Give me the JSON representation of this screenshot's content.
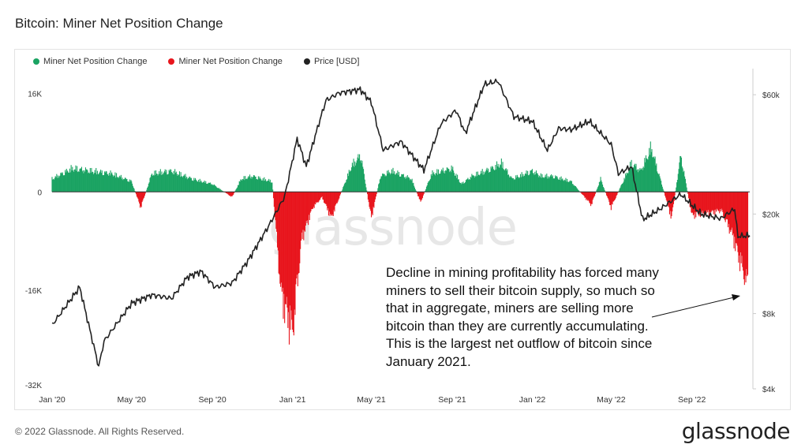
{
  "title": "Bitcoin: Miner Net Position Change",
  "legend": [
    {
      "label": "Miner Net Position Change",
      "color": "#1aa362"
    },
    {
      "label": "Miner Net Position Change",
      "color": "#e8151c"
    },
    {
      "label": "Price [USD]",
      "color": "#222222"
    }
  ],
  "annotation": "Decline in mining profitability has forced many miners to sell their bitcoin supply, so much so that in aggregate, miners are selling more bitcoin than they are currently accumulating. This is the largest net outflow of bitcoin since January 2021.",
  "watermark": "glassnode",
  "footer": {
    "copyright": "© 2022 Glassnode. All Rights Reserved.",
    "brand": "glassnode"
  },
  "chart_data": {
    "type": "bar",
    "left_axis": {
      "ticks": [
        16000,
        0,
        -16000,
        -32000
      ],
      "tick_labels": [
        "16K",
        "0",
        "-16K",
        "-32K"
      ],
      "range": [
        -32000,
        19000
      ]
    },
    "right_axis": {
      "scale": "log",
      "ticks": [
        60000,
        20000,
        8000,
        4000
      ],
      "tick_labels": [
        "$60k",
        "$20k",
        "$8k",
        "$4k"
      ],
      "range": [
        4000,
        72000
      ]
    },
    "x_axis": {
      "range": [
        "2020-01-01",
        "2022-11-28"
      ],
      "tick_labels": [
        "Jan '20",
        "May '20",
        "Sep '20",
        "Jan '21",
        "May '21",
        "Sep '21",
        "Jan '22",
        "May '22",
        "Sep '22"
      ]
    },
    "series": [
      {
        "name": "Miner Net Position Change",
        "type": "bar",
        "color_positive": "#1aa362",
        "color_negative": "#e8151c",
        "x": [
          "2020-01",
          "2020-02",
          "2020-03",
          "2020-04",
          "2020-05",
          "2020-05-15",
          "2020-06",
          "2020-07",
          "2020-08",
          "2020-09",
          "2020-10",
          "2020-10-15",
          "2020-11",
          "2020-11-15",
          "2020-12",
          "2020-12-15",
          "2021-01",
          "2021-01-15",
          "2021-02",
          "2021-02-15",
          "2021-03",
          "2021-04",
          "2021-04-15",
          "2021-05",
          "2021-05-15",
          "2021-06",
          "2021-07",
          "2021-07-15",
          "2021-08",
          "2021-09",
          "2021-09-15",
          "2021-10",
          "2021-11",
          "2021-11-15",
          "2021-12",
          "2022-01",
          "2022-01-15",
          "2022-02",
          "2022-03",
          "2022-04",
          "2022-04-15",
          "2022-05",
          "2022-06",
          "2022-06-15",
          "2022-07",
          "2022-08",
          "2022-08-15",
          "2022-09",
          "2022-10",
          "2022-10-15",
          "2022-11",
          "2022-11-15",
          "2022-11-25"
        ],
        "values": [
          2500,
          4500,
          4000,
          3500,
          2000,
          -3000,
          3500,
          4000,
          2500,
          1500,
          -1000,
          2500,
          3000,
          2500,
          2000,
          -20000,
          -27000,
          -9000,
          -3000,
          -1000,
          -5000,
          5000,
          7000,
          -5000,
          3000,
          4000,
          2500,
          -2000,
          3500,
          4500,
          1500,
          3000,
          4500,
          5500,
          2500,
          4000,
          3000,
          3000,
          2000,
          -2500,
          2500,
          -3000,
          5500,
          4000,
          8500,
          -5000,
          7000,
          -4500,
          -4000,
          -3500,
          -8000,
          -14000,
          -18000
        ]
      },
      {
        "name": "Price [USD]",
        "type": "line",
        "color": "#222222",
        "x": [
          "2020-01-01",
          "2020-02-12",
          "2020-03-12",
          "2020-03-20",
          "2020-05-01",
          "2020-06-01",
          "2020-07-01",
          "2020-07-25",
          "2020-08-15",
          "2020-09-05",
          "2020-10-01",
          "2020-10-25",
          "2020-11-25",
          "2020-12-20",
          "2021-01-08",
          "2021-01-22",
          "2021-02-10",
          "2021-02-21",
          "2021-03-13",
          "2021-04-14",
          "2021-05-01",
          "2021-05-19",
          "2021-06-15",
          "2021-07-20",
          "2021-08-15",
          "2021-09-07",
          "2021-09-21",
          "2021-10-20",
          "2021-11-10",
          "2021-12-04",
          "2022-01-01",
          "2022-01-24",
          "2022-02-10",
          "2022-03-01",
          "2022-03-29",
          "2022-05-01",
          "2022-05-12",
          "2022-06-01",
          "2022-06-18",
          "2022-07-15",
          "2022-08-15",
          "2022-09-15",
          "2022-10-15",
          "2022-11-05",
          "2022-11-10",
          "2022-11-28"
        ],
        "values": [
          7200,
          10200,
          4900,
          6200,
          8800,
          9500,
          9200,
          11200,
          11800,
          10200,
          10600,
          13000,
          17800,
          23500,
          40000,
          31000,
          46000,
          57000,
          61000,
          63000,
          56000,
          36000,
          39000,
          30000,
          46000,
          52000,
          42000,
          66000,
          68000,
          49000,
          47000,
          36000,
          44000,
          43500,
          47000,
          38000,
          29000,
          31000,
          19000,
          21000,
          24000,
          20000,
          19200,
          21000,
          16300,
          16400
        ]
      }
    ]
  }
}
